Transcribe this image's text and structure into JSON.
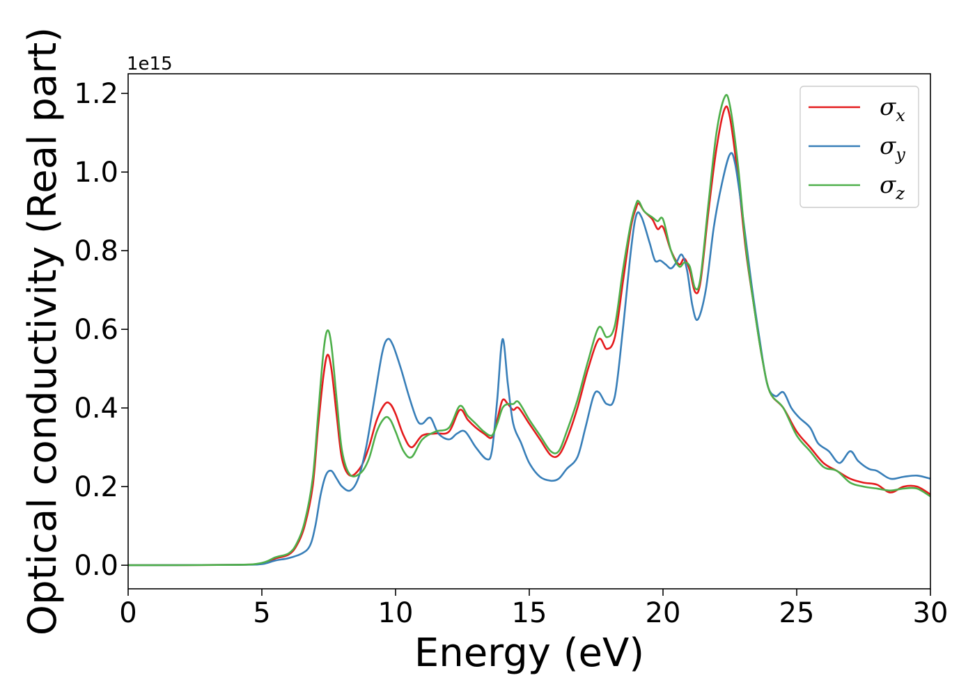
{
  "chart_data": {
    "type": "line",
    "xlabel": "Energy (eV)",
    "ylabel": "Optical conductivity (Real part)",
    "y_offset_label": "1e15",
    "xlim": [
      0,
      30
    ],
    "ylim": [
      -0.06,
      1.25
    ],
    "xticks": [
      0,
      5,
      10,
      15,
      20,
      25,
      30
    ],
    "xtick_labels": [
      "0",
      "5",
      "10",
      "15",
      "20",
      "25",
      "30"
    ],
    "yticks": [
      0.0,
      0.2,
      0.4,
      0.6,
      0.8,
      1.0,
      1.2
    ],
    "ytick_labels": [
      "0.0",
      "0.2",
      "0.4",
      "0.6",
      "0.8",
      "1.0",
      "1.2"
    ],
    "grid": false,
    "legend_position": "top-right",
    "series": [
      {
        "name": "σx",
        "legend_symbol": "σ",
        "legend_subscript": "x",
        "color": "#e41a1c",
        "x": [
          0,
          4,
          5,
          5.5,
          6,
          6.3,
          6.6,
          6.9,
          7.1,
          7.3,
          7.45,
          7.6,
          7.8,
          8.0,
          8.3,
          8.7,
          9.0,
          9.3,
          9.6,
          9.8,
          10.0,
          10.3,
          10.6,
          11.0,
          11.5,
          12.0,
          12.4,
          12.7,
          13.0,
          13.3,
          13.6,
          13.8,
          14.0,
          14.2,
          14.4,
          14.6,
          15.0,
          15.4,
          15.8,
          16.1,
          16.4,
          16.8,
          17.2,
          17.6,
          17.9,
          18.2,
          18.5,
          18.8,
          19.0,
          19.1,
          19.3,
          19.6,
          19.8,
          20.0,
          20.3,
          20.6,
          20.8,
          21.0,
          21.2,
          21.4,
          21.7,
          22.0,
          22.3,
          22.5,
          22.8,
          23.1,
          23.4,
          23.7,
          24.0,
          24.5,
          25.0,
          25.5,
          26.0,
          26.5,
          27.0,
          27.5,
          28.0,
          28.5,
          29.0,
          29.5,
          30.0
        ],
        "y": [
          0.0,
          0.001,
          0.005,
          0.017,
          0.027,
          0.05,
          0.1,
          0.2,
          0.35,
          0.48,
          0.535,
          0.5,
          0.38,
          0.27,
          0.228,
          0.25,
          0.3,
          0.37,
          0.41,
          0.41,
          0.385,
          0.33,
          0.3,
          0.33,
          0.335,
          0.34,
          0.395,
          0.37,
          0.35,
          0.335,
          0.325,
          0.37,
          0.42,
          0.41,
          0.395,
          0.4,
          0.36,
          0.32,
          0.28,
          0.28,
          0.32,
          0.4,
          0.5,
          0.575,
          0.55,
          0.58,
          0.72,
          0.86,
          0.91,
          0.92,
          0.9,
          0.88,
          0.855,
          0.86,
          0.8,
          0.765,
          0.78,
          0.75,
          0.695,
          0.72,
          0.9,
          1.06,
          1.16,
          1.14,
          0.99,
          0.8,
          0.66,
          0.53,
          0.44,
          0.4,
          0.34,
          0.3,
          0.26,
          0.24,
          0.22,
          0.21,
          0.205,
          0.185,
          0.2,
          0.2,
          0.18
        ]
      },
      {
        "name": "σy",
        "legend_symbol": "σ",
        "legend_subscript": "y",
        "color": "#377eb8",
        "x": [
          0,
          4,
          5,
          5.5,
          6,
          6.5,
          6.8,
          7.0,
          7.2,
          7.4,
          7.6,
          7.8,
          8.0,
          8.3,
          8.6,
          8.9,
          9.2,
          9.5,
          9.7,
          9.9,
          10.2,
          10.5,
          10.8,
          11.0,
          11.3,
          11.6,
          12.0,
          12.3,
          12.6,
          13.0,
          13.4,
          13.6,
          13.8,
          14.0,
          14.2,
          14.4,
          14.7,
          15.0,
          15.4,
          15.8,
          16.1,
          16.4,
          16.8,
          17.1,
          17.4,
          17.6,
          17.9,
          18.2,
          18.5,
          18.8,
          19.0,
          19.2,
          19.5,
          19.7,
          19.9,
          20.1,
          20.3,
          20.5,
          20.7,
          20.9,
          21.1,
          21.3,
          21.6,
          21.9,
          22.2,
          22.5,
          22.7,
          23.0,
          23.3,
          23.6,
          23.9,
          24.2,
          24.5,
          24.8,
          25.1,
          25.5,
          25.8,
          26.2,
          26.6,
          27.0,
          27.3,
          27.7,
          28.0,
          28.5,
          29.0,
          29.5,
          30.0
        ],
        "y": [
          0.0,
          0.001,
          0.003,
          0.012,
          0.018,
          0.03,
          0.05,
          0.1,
          0.18,
          0.23,
          0.24,
          0.22,
          0.2,
          0.19,
          0.22,
          0.3,
          0.42,
          0.54,
          0.575,
          0.56,
          0.5,
          0.43,
          0.37,
          0.36,
          0.375,
          0.335,
          0.32,
          0.335,
          0.34,
          0.3,
          0.27,
          0.29,
          0.42,
          0.575,
          0.46,
          0.36,
          0.31,
          0.26,
          0.225,
          0.215,
          0.22,
          0.245,
          0.275,
          0.35,
          0.43,
          0.44,
          0.41,
          0.43,
          0.6,
          0.8,
          0.89,
          0.885,
          0.82,
          0.775,
          0.775,
          0.765,
          0.755,
          0.77,
          0.79,
          0.75,
          0.66,
          0.625,
          0.7,
          0.86,
          0.97,
          1.045,
          1.02,
          0.88,
          0.72,
          0.58,
          0.46,
          0.43,
          0.44,
          0.4,
          0.375,
          0.35,
          0.31,
          0.29,
          0.26,
          0.29,
          0.265,
          0.245,
          0.24,
          0.22,
          0.225,
          0.228,
          0.22
        ]
      },
      {
        "name": "σz",
        "legend_symbol": "σ",
        "legend_subscript": "z",
        "color": "#4daf4a",
        "x": [
          0,
          4,
          5,
          5.5,
          6,
          6.3,
          6.6,
          6.9,
          7.1,
          7.3,
          7.45,
          7.6,
          7.8,
          8.0,
          8.3,
          8.7,
          9.0,
          9.3,
          9.6,
          9.8,
          10.0,
          10.3,
          10.6,
          11.0,
          11.5,
          12.0,
          12.4,
          12.7,
          13.0,
          13.3,
          13.6,
          13.8,
          14.0,
          14.2,
          14.4,
          14.6,
          15.0,
          15.4,
          15.8,
          16.1,
          16.4,
          16.8,
          17.2,
          17.6,
          17.9,
          18.2,
          18.5,
          18.8,
          19.0,
          19.1,
          19.3,
          19.6,
          19.8,
          20.0,
          20.3,
          20.6,
          20.8,
          21.0,
          21.2,
          21.4,
          21.7,
          22.0,
          22.3,
          22.5,
          22.8,
          23.1,
          23.4,
          23.7,
          24.0,
          24.5,
          25.0,
          25.5,
          26.0,
          26.5,
          27.0,
          27.5,
          28.0,
          28.5,
          29.0,
          29.5,
          30.0
        ],
        "y": [
          0.0,
          0.001,
          0.006,
          0.02,
          0.03,
          0.055,
          0.11,
          0.22,
          0.38,
          0.54,
          0.597,
          0.56,
          0.42,
          0.29,
          0.23,
          0.235,
          0.27,
          0.34,
          0.375,
          0.37,
          0.34,
          0.29,
          0.275,
          0.32,
          0.34,
          0.35,
          0.405,
          0.38,
          0.36,
          0.34,
          0.33,
          0.36,
          0.4,
          0.41,
          0.41,
          0.415,
          0.37,
          0.33,
          0.29,
          0.29,
          0.34,
          0.42,
          0.52,
          0.605,
          0.58,
          0.61,
          0.75,
          0.87,
          0.92,
          0.925,
          0.9,
          0.885,
          0.875,
          0.88,
          0.8,
          0.76,
          0.77,
          0.76,
          0.705,
          0.73,
          0.92,
          1.1,
          1.19,
          1.17,
          1.02,
          0.81,
          0.66,
          0.53,
          0.44,
          0.4,
          0.33,
          0.29,
          0.25,
          0.24,
          0.21,
          0.2,
          0.195,
          0.19,
          0.195,
          0.195,
          0.175
        ]
      }
    ]
  }
}
